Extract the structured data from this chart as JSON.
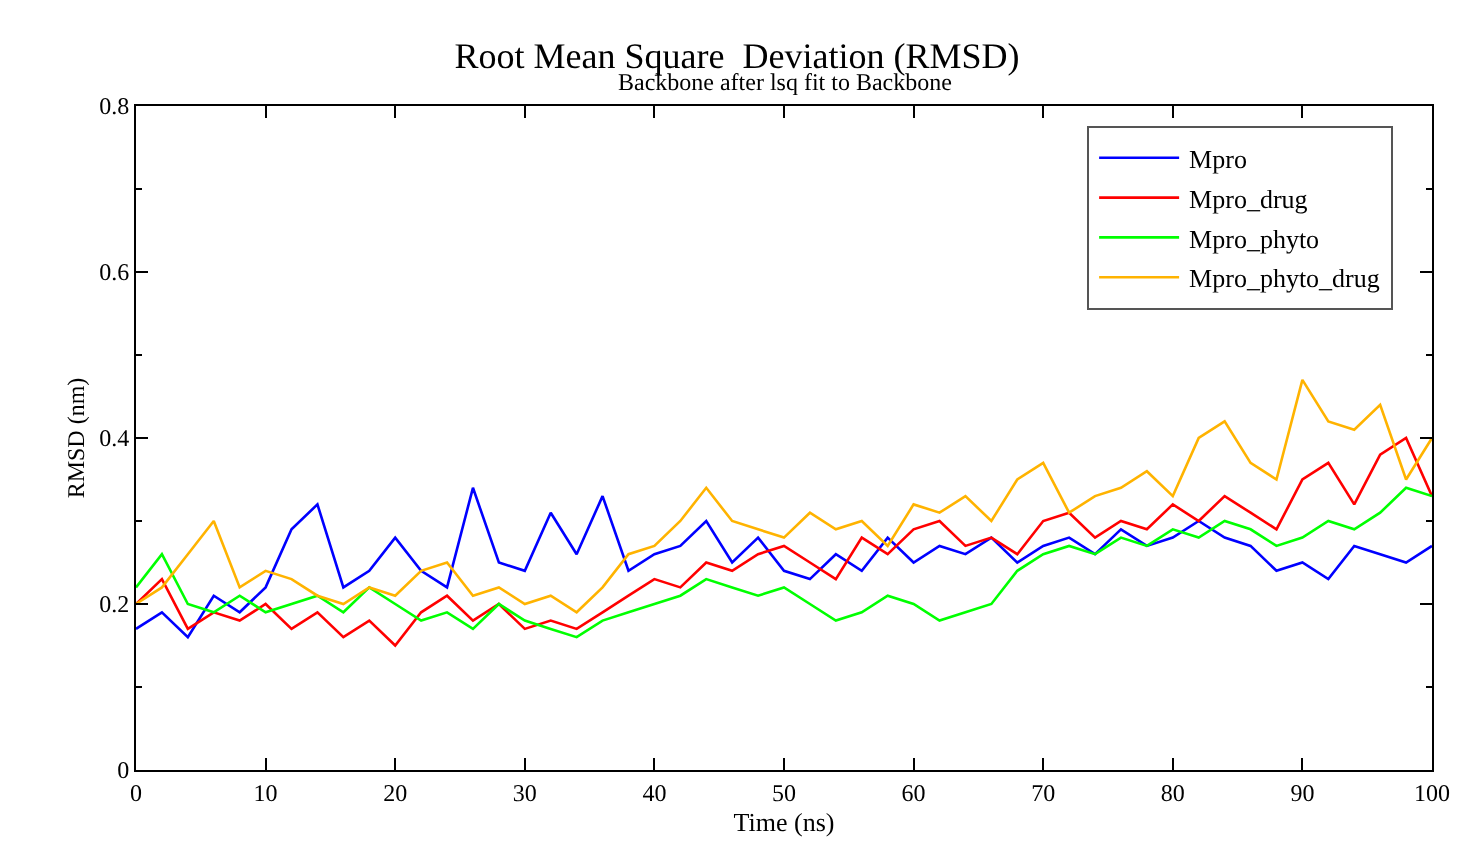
{
  "chart_data": {
    "type": "line",
    "title": "Root Mean Square  Deviation (RMSD)",
    "subtitle": "Backbone after lsq fit to Backbone",
    "xlabel": "Time (ns)",
    "ylabel": "RMSD (nm)",
    "x": [
      0,
      2,
      4,
      6,
      8,
      10,
      12,
      14,
      16,
      18,
      20,
      22,
      24,
      26,
      28,
      30,
      32,
      34,
      36,
      38,
      40,
      42,
      44,
      46,
      48,
      50,
      52,
      54,
      56,
      58,
      60,
      62,
      64,
      66,
      68,
      70,
      72,
      74,
      76,
      78,
      80,
      82,
      84,
      86,
      88,
      90,
      92,
      94,
      96,
      98,
      100
    ],
    "xlim": [
      0,
      100
    ],
    "ylim": [
      0,
      0.8
    ],
    "xticks": [
      0,
      10,
      20,
      30,
      40,
      50,
      60,
      70,
      80,
      90,
      100
    ],
    "yticks": [
      0,
      0.2,
      0.4,
      0.6,
      0.8
    ],
    "legend": "top right",
    "marker": "none",
    "line_style": "solid",
    "series": [
      {
        "name": "Mpro",
        "color": "#0000ff",
        "values": [
          0.17,
          0.19,
          0.16,
          0.21,
          0.19,
          0.22,
          0.29,
          0.32,
          0.22,
          0.24,
          0.28,
          0.24,
          0.22,
          0.34,
          0.25,
          0.24,
          0.31,
          0.26,
          0.33,
          0.24,
          0.26,
          0.27,
          0.3,
          0.25,
          0.28,
          0.24,
          0.23,
          0.26,
          0.24,
          0.28,
          0.25,
          0.27,
          0.26,
          0.28,
          0.25,
          0.27,
          0.28,
          0.26,
          0.29,
          0.27,
          0.28,
          0.3,
          0.28,
          0.27,
          0.24,
          0.25,
          0.23,
          0.27,
          0.26,
          0.25,
          0.27
        ]
      },
      {
        "name": "Mpro_drug",
        "color": "#ff0000",
        "values": [
          0.2,
          0.23,
          0.17,
          0.19,
          0.18,
          0.2,
          0.17,
          0.19,
          0.16,
          0.18,
          0.15,
          0.19,
          0.21,
          0.18,
          0.2,
          0.17,
          0.18,
          0.17,
          0.19,
          0.21,
          0.23,
          0.22,
          0.25,
          0.24,
          0.26,
          0.27,
          0.25,
          0.23,
          0.28,
          0.26,
          0.29,
          0.3,
          0.27,
          0.28,
          0.26,
          0.3,
          0.31,
          0.28,
          0.3,
          0.29,
          0.32,
          0.3,
          0.33,
          0.31,
          0.29,
          0.35,
          0.37,
          0.32,
          0.38,
          0.4,
          0.33
        ]
      },
      {
        "name": "Mpro_phyto",
        "color": "#00ff00",
        "values": [
          0.22,
          0.26,
          0.2,
          0.19,
          0.21,
          0.19,
          0.2,
          0.21,
          0.19,
          0.22,
          0.2,
          0.18,
          0.19,
          0.17,
          0.2,
          0.18,
          0.17,
          0.16,
          0.18,
          0.19,
          0.2,
          0.21,
          0.23,
          0.22,
          0.21,
          0.22,
          0.2,
          0.18,
          0.19,
          0.21,
          0.2,
          0.18,
          0.19,
          0.2,
          0.24,
          0.26,
          0.27,
          0.26,
          0.28,
          0.27,
          0.29,
          0.28,
          0.3,
          0.29,
          0.27,
          0.28,
          0.3,
          0.29,
          0.31,
          0.34,
          0.33
        ]
      },
      {
        "name": "Mpro_phyto_drug",
        "color": "#ffb300",
        "values": [
          0.2,
          0.22,
          0.26,
          0.3,
          0.22,
          0.24,
          0.23,
          0.21,
          0.2,
          0.22,
          0.21,
          0.24,
          0.25,
          0.21,
          0.22,
          0.2,
          0.21,
          0.19,
          0.22,
          0.26,
          0.27,
          0.3,
          0.34,
          0.3,
          0.29,
          0.28,
          0.31,
          0.29,
          0.3,
          0.27,
          0.32,
          0.31,
          0.33,
          0.3,
          0.35,
          0.37,
          0.31,
          0.33,
          0.34,
          0.36,
          0.33,
          0.4,
          0.42,
          0.37,
          0.35,
          0.47,
          0.42,
          0.41,
          0.44,
          0.35,
          0.4
        ]
      }
    ]
  }
}
